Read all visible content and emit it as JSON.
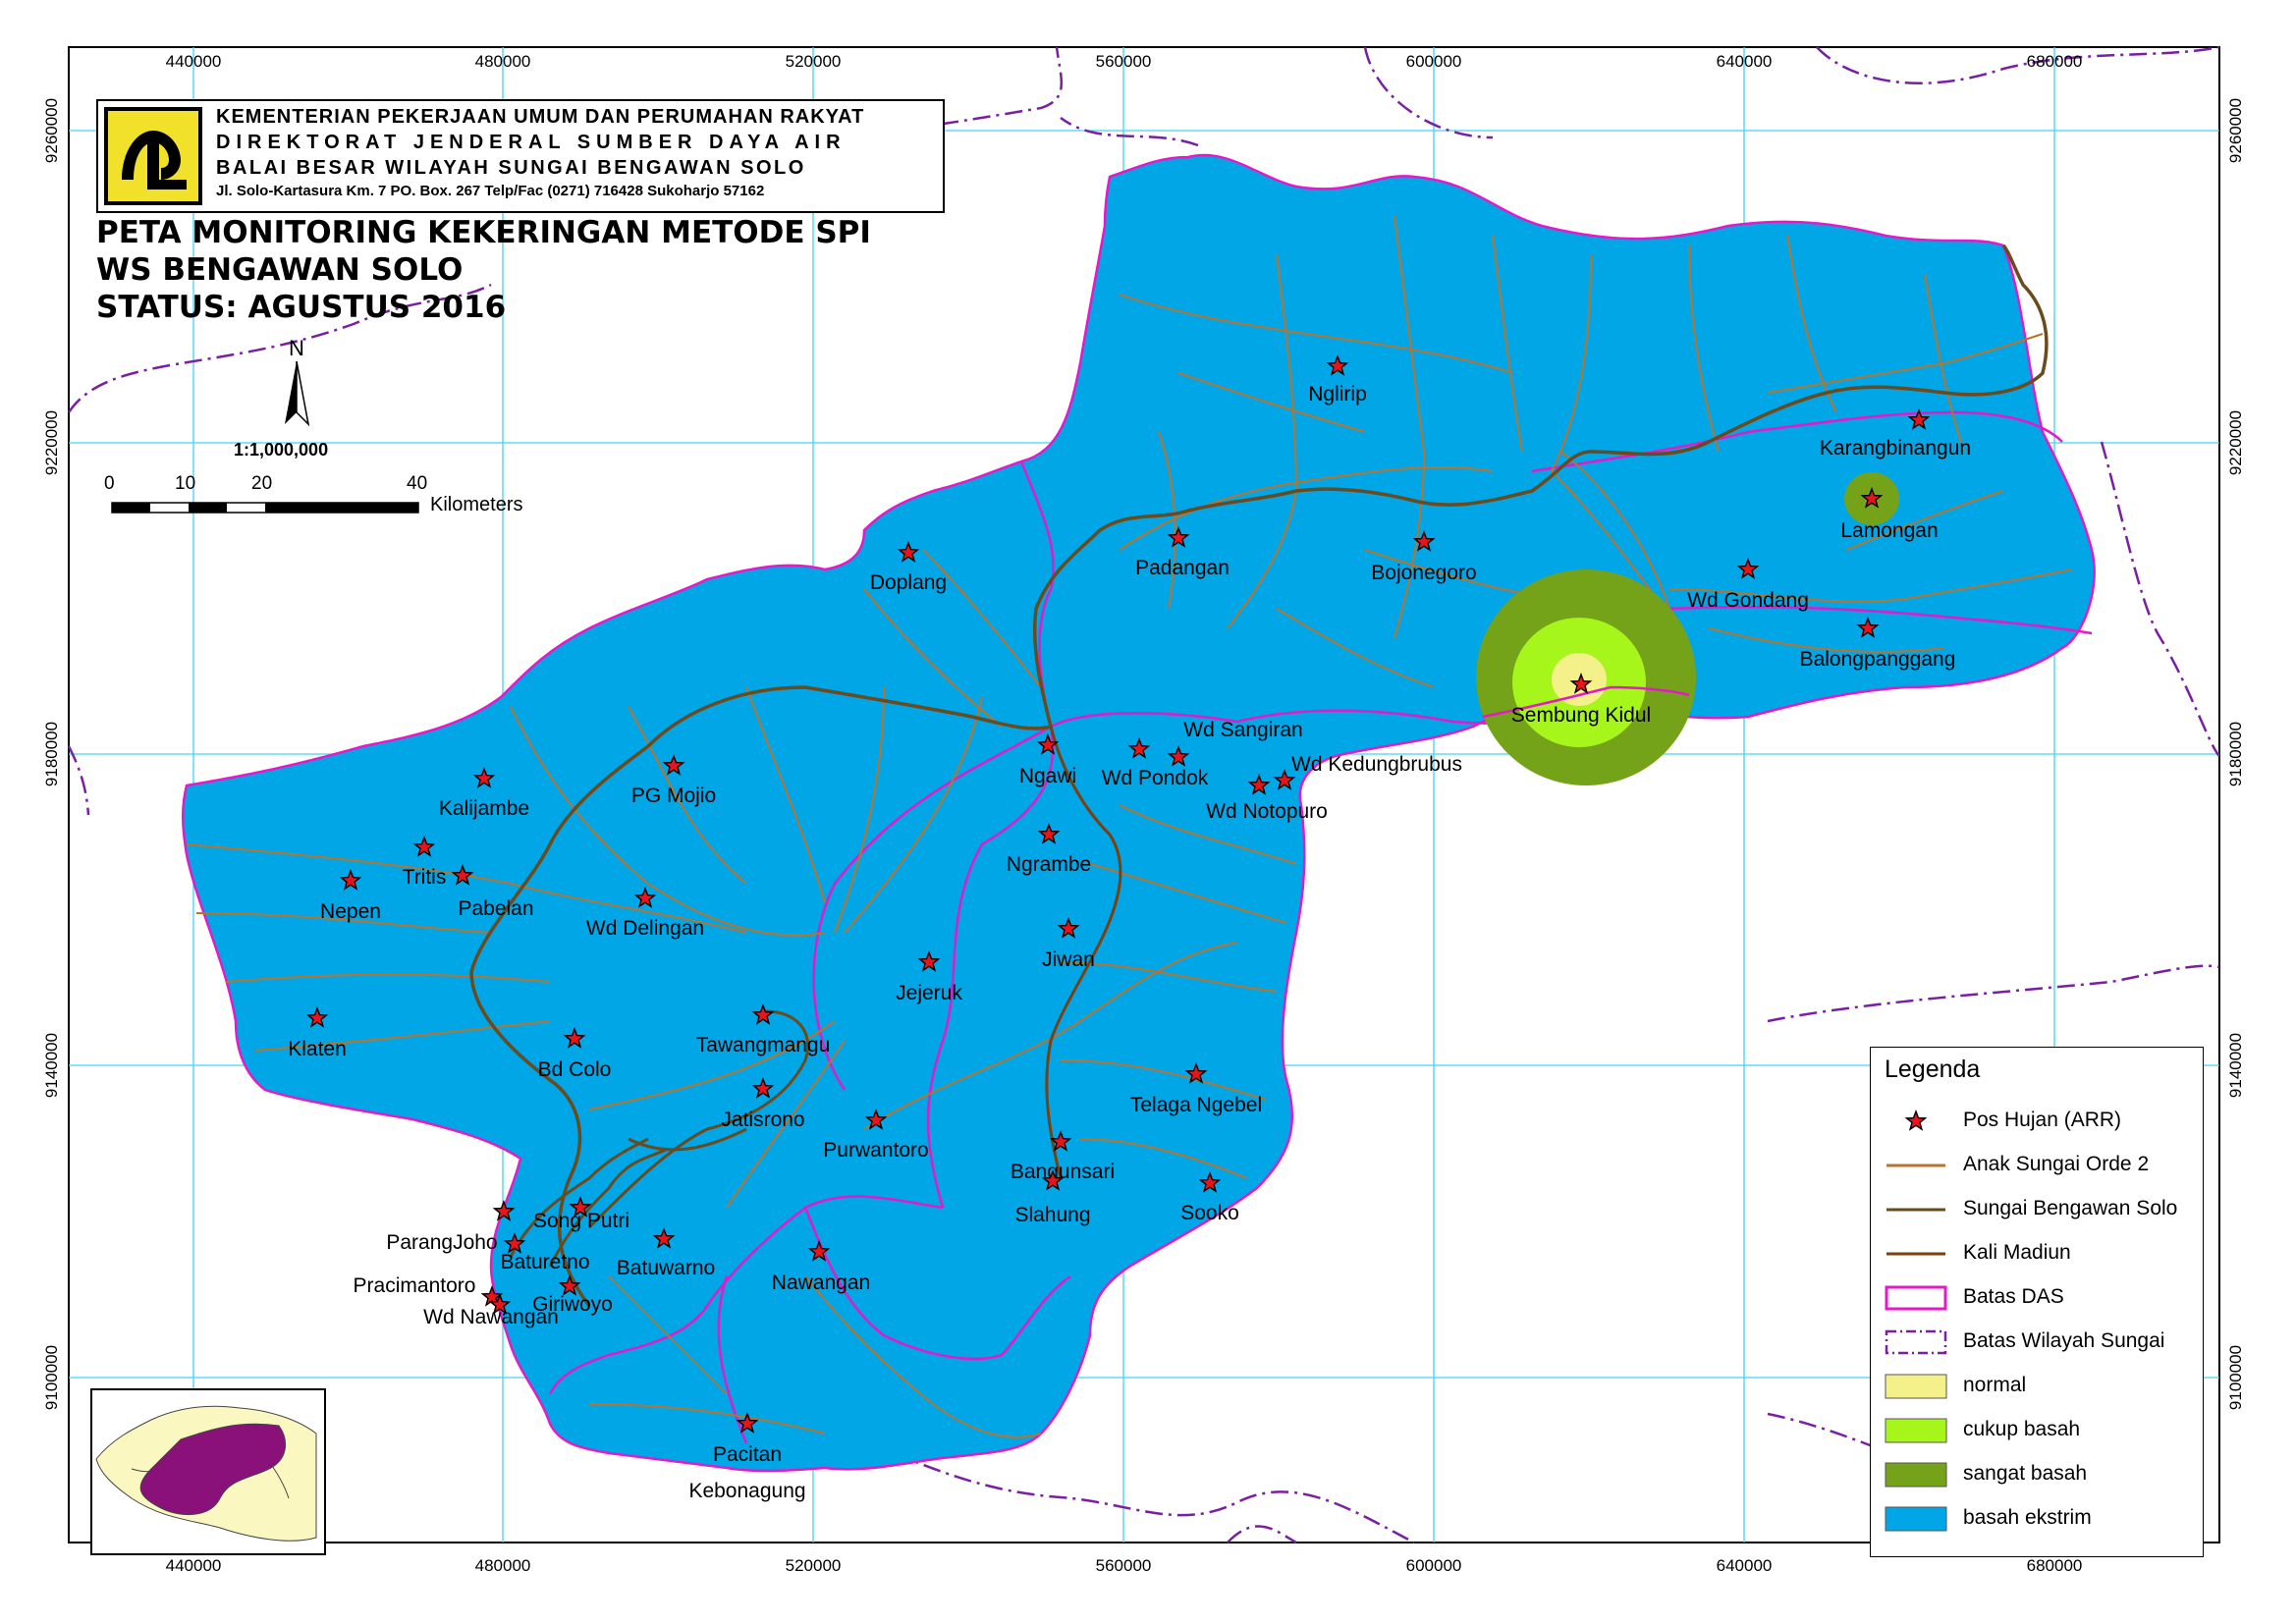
{
  "header": {
    "line1": "KEMENTERIAN PEKERJAAN UMUM DAN PERUMAHAN RAKYAT",
    "line2": "DIREKTORAT JENDERAL SUMBER DAYA AIR",
    "line3": "BALAI BESAR WILAYAH SUNGAI BENGAWAN SOLO",
    "line4": "Jl. Solo-Kartasura Km. 7 PO. Box. 267 Telp/Fac (0271) 716428 Sukoharjo 57162"
  },
  "title": {
    "line1": "PETA MONITORING KEKERINGAN METODE SPI",
    "line2": "WS BENGAWAN SOLO",
    "line3": "STATUS: AGUSTUS 2016"
  },
  "north_arrow": {
    "label": "N"
  },
  "scale": {
    "ratio": "1:1,000,000",
    "ticks": [
      "0",
      "10",
      "20",
      "40"
    ],
    "unit": "Kilometers"
  },
  "grid": {
    "x_labels": [
      "440000",
      "480000",
      "520000",
      "560000",
      "600000",
      "640000",
      "680000"
    ],
    "y_labels": [
      "9260000",
      "9220000",
      "9180000",
      "9140000",
      "9100000"
    ]
  },
  "stations": [
    {
      "name": "Nglirip"
    },
    {
      "name": "Karangbinangun"
    },
    {
      "name": "Lamongan"
    },
    {
      "name": "Padangan"
    },
    {
      "name": "Bojonegoro"
    },
    {
      "name": "Doplang"
    },
    {
      "name": "Wd Gondang"
    },
    {
      "name": "Balongpanggang"
    },
    {
      "name": "Sembung Kidul"
    },
    {
      "name": "Wd Sangiran"
    },
    {
      "name": "Wd Kedungbrubus"
    },
    {
      "name": "Ngawi"
    },
    {
      "name": "Wd Pondok"
    },
    {
      "name": "Wd Notopuro"
    },
    {
      "name": "Kalijambe"
    },
    {
      "name": "PG Mojio"
    },
    {
      "name": "Tritis"
    },
    {
      "name": "Nepen"
    },
    {
      "name": "Pabelan"
    },
    {
      "name": "Wd Delingan"
    },
    {
      "name": "Ngrambe"
    },
    {
      "name": "Jiwan"
    },
    {
      "name": "Jejeruk"
    },
    {
      "name": "Klaten"
    },
    {
      "name": "Tawangmangu"
    },
    {
      "name": "Bd Colo"
    },
    {
      "name": "Telaga Ngebel"
    },
    {
      "name": "Jatisrono"
    },
    {
      "name": "Purwantoro"
    },
    {
      "name": "Bangunsari"
    },
    {
      "name": "Sooko"
    },
    {
      "name": "Slahung"
    },
    {
      "name": "ParangJoho"
    },
    {
      "name": "Song Putri"
    },
    {
      "name": "Baturetno"
    },
    {
      "name": "Batuwarno"
    },
    {
      "name": "Pracimantoro"
    },
    {
      "name": "Giriwoyo"
    },
    {
      "name": "Wd Nawangan"
    },
    {
      "name": "Nawangan"
    },
    {
      "name": "Pacitan"
    },
    {
      "name": "Kebonagung"
    }
  ],
  "legend": {
    "title": "Legenda",
    "items": [
      {
        "label": "Pos Hujan (ARR)",
        "kind": "star",
        "color": "#e8141b"
      },
      {
        "label": "Anak Sungai Orde 2",
        "kind": "line",
        "color": "#b8742f"
      },
      {
        "label": "Sungai Bengawan Solo",
        "kind": "line",
        "color": "#6b4a1e"
      },
      {
        "label": "Kali Madiun",
        "kind": "line",
        "color": "#7b3f10"
      },
      {
        "label": "Batas DAS",
        "kind": "box-outline",
        "color": "#e619c8"
      },
      {
        "label": "Batas Wilayah Sungai",
        "kind": "box-dashed",
        "color": "#7a1fa2"
      },
      {
        "label": "normal",
        "kind": "fill",
        "color": "#f4f08a"
      },
      {
        "label": "cukup basah",
        "kind": "fill",
        "color": "#a6f51b"
      },
      {
        "label": "sangat basah",
        "kind": "fill",
        "color": "#74a31a"
      },
      {
        "label": "basah ekstrim",
        "kind": "fill",
        "color": "#00a6e6"
      }
    ]
  },
  "colors": {
    "basin": "#00a6e6",
    "das_boundary": "#e619c8",
    "river_boundary": "#7a1fa2",
    "grid": "#40d4f0",
    "star": "#e8141b"
  }
}
